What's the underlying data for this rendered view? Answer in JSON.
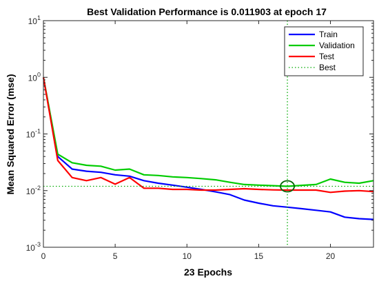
{
  "chart_data": {
    "type": "line",
    "title": "Best Validation Performance is 0.011903 at epoch 17",
    "xlabel": "23 Epochs",
    "ylabel": "Mean Squared Error  (mse)",
    "xlim": [
      0,
      23
    ],
    "ylim": [
      0.001,
      10
    ],
    "yscale": "log",
    "x_ticks": [
      0,
      5,
      10,
      15,
      20
    ],
    "y_ticks": [
      {
        "value": 0.001,
        "base": "10",
        "exp": "-3"
      },
      {
        "value": 0.01,
        "base": "10",
        "exp": "-2"
      },
      {
        "value": 0.1,
        "base": "10",
        "exp": "-1"
      },
      {
        "value": 1,
        "base": "10",
        "exp": "0"
      },
      {
        "value": 10,
        "base": "10",
        "exp": "1"
      }
    ],
    "legend_position": "top-right",
    "series": [
      {
        "name": "Train",
        "color": "#0000ff",
        "x": [
          0,
          1,
          2,
          3,
          4,
          5,
          6,
          7,
          8,
          9,
          10,
          11,
          12,
          13,
          14,
          15,
          16,
          17,
          18,
          19,
          20,
          21,
          22,
          23
        ],
        "y": [
          1.0,
          0.04,
          0.024,
          0.022,
          0.021,
          0.019,
          0.018,
          0.015,
          0.0135,
          0.0125,
          0.0115,
          0.0105,
          0.0095,
          0.0085,
          0.0068,
          0.006,
          0.0054,
          0.0051,
          0.0048,
          0.0045,
          0.0042,
          0.0034,
          0.0032,
          0.0031
        ]
      },
      {
        "name": "Validation",
        "color": "#00cc00",
        "x": [
          0,
          1,
          2,
          3,
          4,
          5,
          6,
          7,
          8,
          9,
          10,
          11,
          12,
          13,
          14,
          15,
          16,
          17,
          18,
          19,
          20,
          21,
          22,
          23
        ],
        "y": [
          1.0,
          0.044,
          0.031,
          0.028,
          0.027,
          0.023,
          0.024,
          0.019,
          0.0185,
          0.0175,
          0.017,
          0.0163,
          0.0155,
          0.014,
          0.0128,
          0.0125,
          0.0122,
          0.011903,
          0.0124,
          0.0128,
          0.016,
          0.014,
          0.0135,
          0.015
        ]
      },
      {
        "name": "Test",
        "color": "#ff0000",
        "x": [
          0,
          1,
          2,
          3,
          4,
          5,
          6,
          7,
          8,
          9,
          10,
          11,
          12,
          13,
          14,
          15,
          16,
          17,
          18,
          19,
          20,
          21,
          22,
          23
        ],
        "y": [
          1.0,
          0.034,
          0.017,
          0.015,
          0.017,
          0.013,
          0.017,
          0.011,
          0.011,
          0.0105,
          0.0105,
          0.0102,
          0.0102,
          0.0105,
          0.0108,
          0.0105,
          0.0103,
          0.0102,
          0.0102,
          0.0102,
          0.0093,
          0.0098,
          0.01,
          0.0096
        ]
      },
      {
        "name": "Best",
        "color": "#00aa00",
        "style": "dotted",
        "best_epoch": 17,
        "best_value": 0.011903
      }
    ]
  }
}
